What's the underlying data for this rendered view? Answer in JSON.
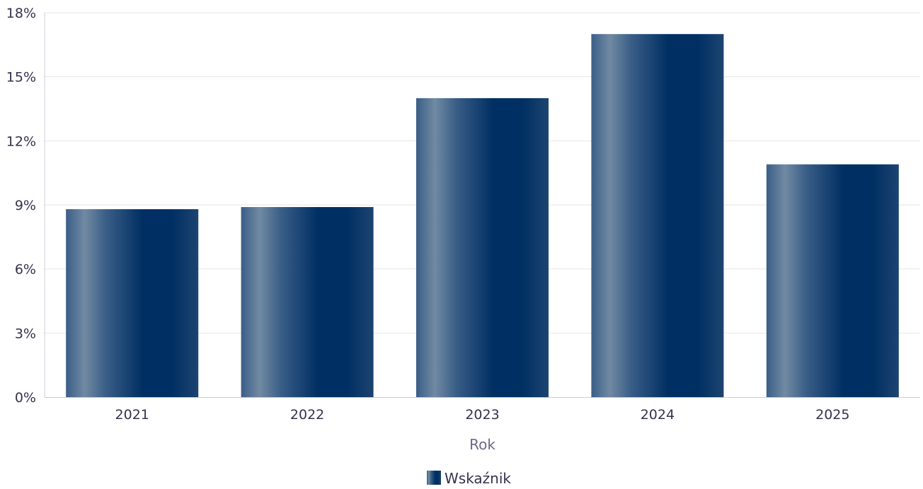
{
  "chart_data": {
    "type": "bar",
    "categories": [
      "2021",
      "2022",
      "2023",
      "2024",
      "2025"
    ],
    "series": [
      {
        "name": "Wskaźnik",
        "values": [
          8.8,
          8.9,
          14.0,
          17.0,
          10.9
        ]
      }
    ],
    "title": "",
    "xlabel": "Rok",
    "ylabel": "",
    "ylim": [
      0,
      18
    ],
    "yticks": [
      0,
      3,
      6,
      9,
      12,
      15,
      18
    ],
    "ytick_labels": [
      "0%",
      "3%",
      "6%",
      "9%",
      "12%",
      "15%",
      "18%"
    ],
    "grid": true,
    "legend_position": "bottom-center",
    "colors": {
      "bar_dark": "#002f63",
      "bar_light": "#718aa3",
      "bar_mid": "#3a5e87",
      "grid": "#e6e6ea",
      "axis": "#ccccdd",
      "tick_text": "#33334d",
      "axis_title": "#6a6a8a"
    }
  }
}
